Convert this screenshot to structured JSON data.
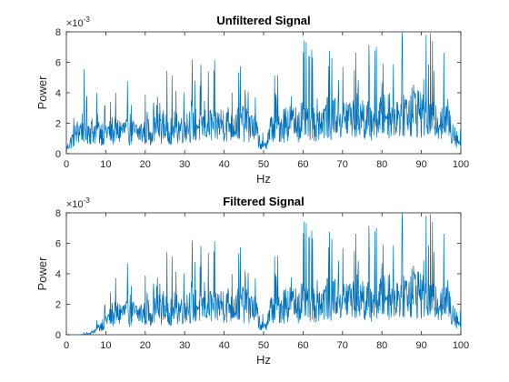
{
  "chart_data": [
    {
      "type": "line",
      "title": "Unfiltered Signal",
      "xlabel": "Hz",
      "ylabel": "Power",
      "xlim": [
        0,
        100
      ],
      "ylim": [
        0,
        8
      ],
      "y_multiplier": "×10",
      "y_exponent": "-3",
      "xticks": [
        "0",
        "10",
        "20",
        "30",
        "40",
        "50",
        "60",
        "70",
        "80",
        "90",
        "100"
      ],
      "yticks": [
        "0",
        "2",
        "4",
        "6",
        "8"
      ],
      "line_color": "#0072BD",
      "grid": false,
      "legend": "none",
      "series": [
        {
          "x": [
            0,
            2,
            4,
            6,
            8,
            10,
            12,
            14,
            16,
            18,
            20,
            22,
            24,
            26,
            28,
            30,
            32,
            34,
            36,
            38,
            40,
            42,
            44,
            46,
            48,
            49,
            50,
            51,
            52,
            54,
            56,
            58,
            60,
            62,
            64,
            66,
            68,
            70,
            72,
            74,
            76,
            78,
            80,
            82,
            84,
            86,
            88,
            90,
            92,
            94,
            96,
            98,
            100
          ],
          "y": [
            0.3,
            1.2,
            1.8,
            1.6,
            1.5,
            1.5,
            1.4,
            1.6,
            1.5,
            1.4,
            1.5,
            1.6,
            1.8,
            1.7,
            1.6,
            2.0,
            2.1,
            1.9,
            2.0,
            1.9,
            2.1,
            2.0,
            2.2,
            2.1,
            1.6,
            0.8,
            0.4,
            1.0,
            1.8,
            1.9,
            2.2,
            2.0,
            2.4,
            2.3,
            2.2,
            2.5,
            2.6,
            2.4,
            2.5,
            2.7,
            2.3,
            2.4,
            2.6,
            2.8,
            2.6,
            2.9,
            3.1,
            2.8,
            2.6,
            2.4,
            2.3,
            1.6,
            0.6
          ]
        }
      ]
    },
    {
      "type": "line",
      "title": "Filtered Signal",
      "xlabel": "Hz",
      "ylabel": "Power",
      "xlim": [
        0,
        100
      ],
      "ylim": [
        0,
        8
      ],
      "y_multiplier": "×10",
      "y_exponent": "-3",
      "xticks": [
        "0",
        "10",
        "20",
        "30",
        "40",
        "50",
        "60",
        "70",
        "80",
        "90",
        "100"
      ],
      "yticks": [
        "0",
        "2",
        "4",
        "6",
        "8"
      ],
      "line_color": "#0072BD",
      "grid": false,
      "legend": "none",
      "series": [
        {
          "x": [
            0,
            2,
            4,
            6,
            8,
            10,
            12,
            14,
            16,
            18,
            20,
            22,
            24,
            26,
            28,
            30,
            32,
            34,
            36,
            38,
            40,
            42,
            44,
            46,
            48,
            49,
            50,
            51,
            52,
            54,
            56,
            58,
            60,
            62,
            64,
            66,
            68,
            70,
            72,
            74,
            76,
            78,
            80,
            82,
            84,
            86,
            88,
            90,
            92,
            94,
            96,
            98,
            100
          ],
          "y": [
            0.0,
            0.0,
            0.02,
            0.1,
            0.4,
            1.0,
            1.3,
            1.5,
            1.5,
            1.4,
            1.5,
            1.6,
            1.8,
            1.7,
            1.6,
            2.0,
            2.1,
            1.9,
            2.0,
            1.9,
            2.1,
            2.0,
            2.2,
            2.1,
            1.6,
            0.8,
            0.4,
            1.0,
            1.8,
            1.9,
            2.2,
            2.0,
            2.4,
            2.3,
            2.2,
            2.5,
            2.6,
            2.4,
            2.5,
            2.7,
            2.3,
            2.4,
            2.6,
            2.8,
            2.6,
            2.9,
            3.1,
            2.8,
            2.6,
            2.4,
            2.3,
            1.6,
            0.6
          ]
        }
      ]
    }
  ]
}
